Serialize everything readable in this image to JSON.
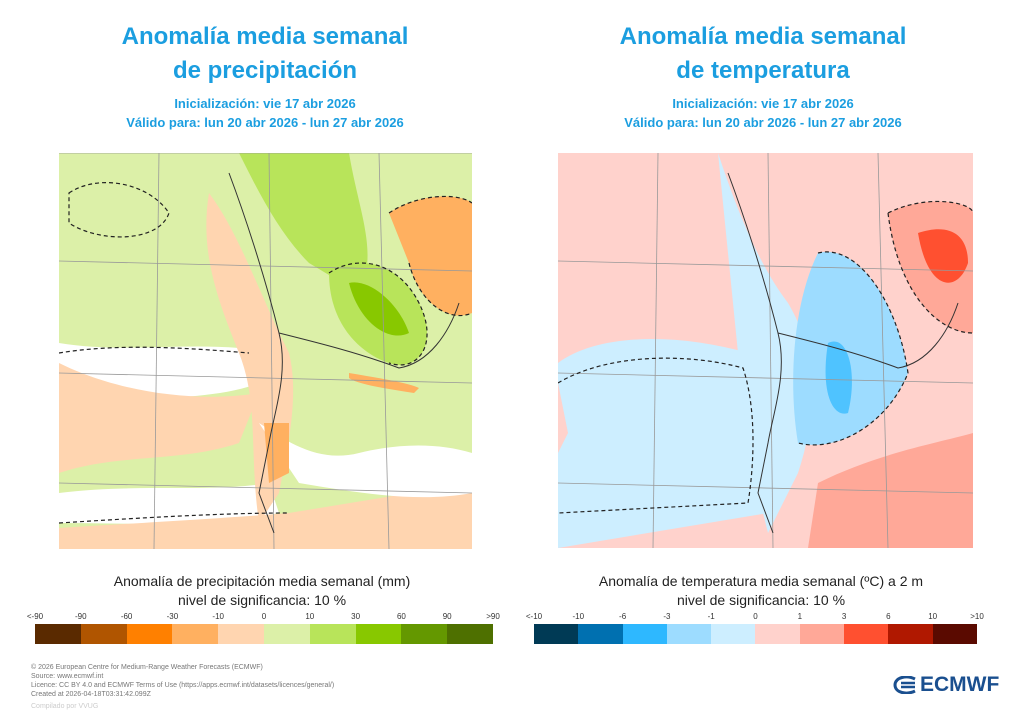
{
  "left": {
    "title_line1": "Anomalía media semanal",
    "title_line2": "de precipitación",
    "init": "Inicialización: vie 17 abr 2026",
    "valid": "Válido para: lun 20 abr 2026 - lun 27 abr 2026",
    "caption": "Anomalía de precipitación media semanal (mm)",
    "significance": "nivel de significancia: 10 %",
    "legend_labels": [
      "<-90",
      "-90",
      "-60",
      "-30",
      "-10",
      "0",
      "10",
      "30",
      "60",
      "90",
      ">90"
    ],
    "legend_colors": [
      "#5a2a00",
      "#b05500",
      "#ff8000",
      "#ffb060",
      "#ffd5b0",
      "#dcf0a8",
      "#b8e45a",
      "#88c800",
      "#649800",
      "#4e7000"
    ]
  },
  "right": {
    "title_line1": "Anomalía media semanal",
    "title_line2": "de temperatura",
    "init": "Inicialización: vie 17 abr 2026",
    "valid": "Válido para: lun 20 abr 2026 - lun 27 abr 2026",
    "caption": "Anomalía de temperatura media semanal (ºC) a 2 m",
    "significance": "nivel de significancia: 10 %",
    "legend_labels": [
      "<-10",
      "-10",
      "-6",
      "-3",
      "-1",
      "0",
      "1",
      "3",
      "6",
      "10",
      ">10"
    ],
    "legend_colors": [
      "#003a55",
      "#0070b0",
      "#2eb8ff",
      "#9ddcff",
      "#cdeeff",
      "#ffd2cc",
      "#ffa898",
      "#ff5030",
      "#b01800",
      "#5a0a00"
    ]
  },
  "footer": {
    "lines": [
      "© 2026 European Centre for Medium-Range Weather Forecasts (ECMWF)",
      "Source: www.ecmwf.int",
      "Licence: CC BY 4.0 and ECMWF Terms of Use (https://apps.ecmwf.int/datasets/licences/general/)",
      "Created at 2026-04-18T03:31:42.099Z"
    ],
    "compiled": "Compilado por VVUG",
    "logo": "ECMWF"
  }
}
